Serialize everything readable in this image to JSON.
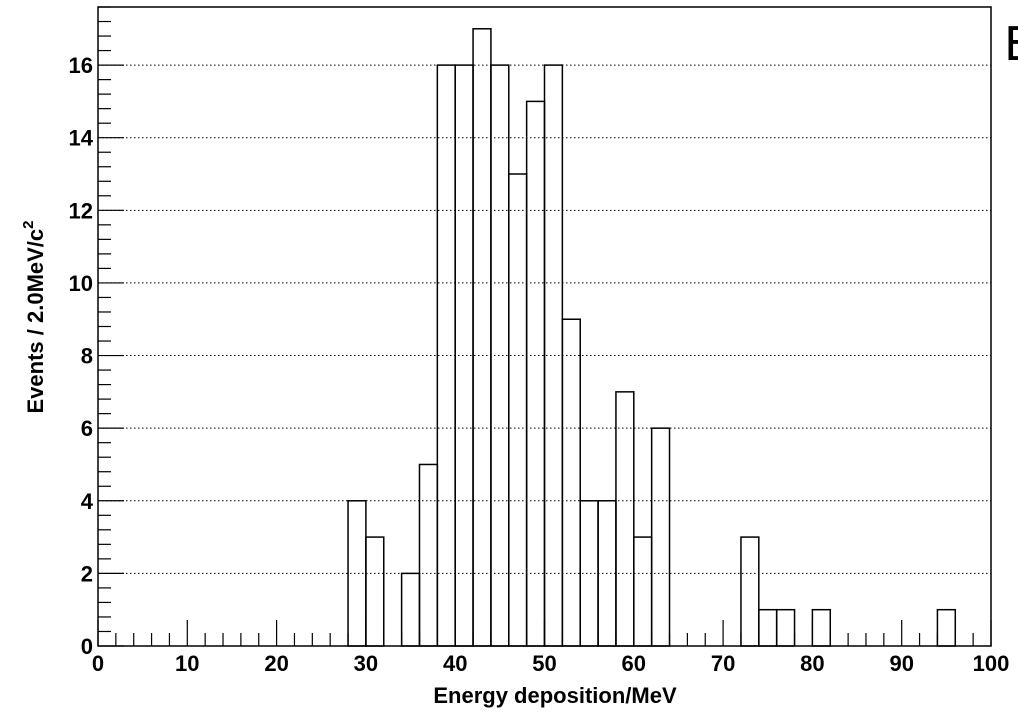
{
  "chart_data": {
    "type": "histogram",
    "title": "",
    "xlabel": "Energy deposition/MeV",
    "ylabel_main": "Events / 2.0MeV/c",
    "ylabel_sup": "2",
    "corner_text": "E",
    "xlim": [
      0,
      100
    ],
    "ylim": [
      0,
      17.6
    ],
    "bin_width": 2,
    "x_ticks": [
      0,
      10,
      20,
      30,
      40,
      50,
      60,
      70,
      80,
      90,
      100
    ],
    "x_tick_labels": [
      "0",
      "10",
      "20",
      "30",
      "40",
      "50",
      "60",
      "70",
      "80",
      "90",
      "100"
    ],
    "y_ticks": [
      0,
      2,
      4,
      6,
      8,
      10,
      12,
      14,
      16
    ],
    "y_tick_labels": [
      "0",
      "2",
      "4",
      "6",
      "8",
      "10",
      "12",
      "14",
      "16"
    ],
    "grid": "horizontal dotted",
    "bin_lows": [
      0,
      2,
      4,
      6,
      8,
      10,
      12,
      14,
      16,
      18,
      20,
      22,
      24,
      26,
      28,
      30,
      32,
      34,
      36,
      38,
      40,
      42,
      44,
      46,
      48,
      50,
      52,
      54,
      56,
      58,
      60,
      62,
      64,
      66,
      68,
      70,
      72,
      74,
      76,
      78,
      80,
      82,
      84,
      86,
      88,
      90,
      92,
      94,
      96,
      98
    ],
    "counts": [
      0,
      0,
      0,
      0,
      0,
      0,
      0,
      0,
      0,
      0,
      0,
      0,
      0,
      0,
      4,
      3,
      0,
      2,
      5,
      16,
      16,
      17,
      16,
      13,
      15,
      16,
      9,
      4,
      4,
      7,
      3,
      6,
      0,
      0,
      0,
      0,
      3,
      1,
      1,
      0,
      1,
      0,
      0,
      0,
      0,
      0,
      0,
      1,
      0,
      0
    ]
  }
}
